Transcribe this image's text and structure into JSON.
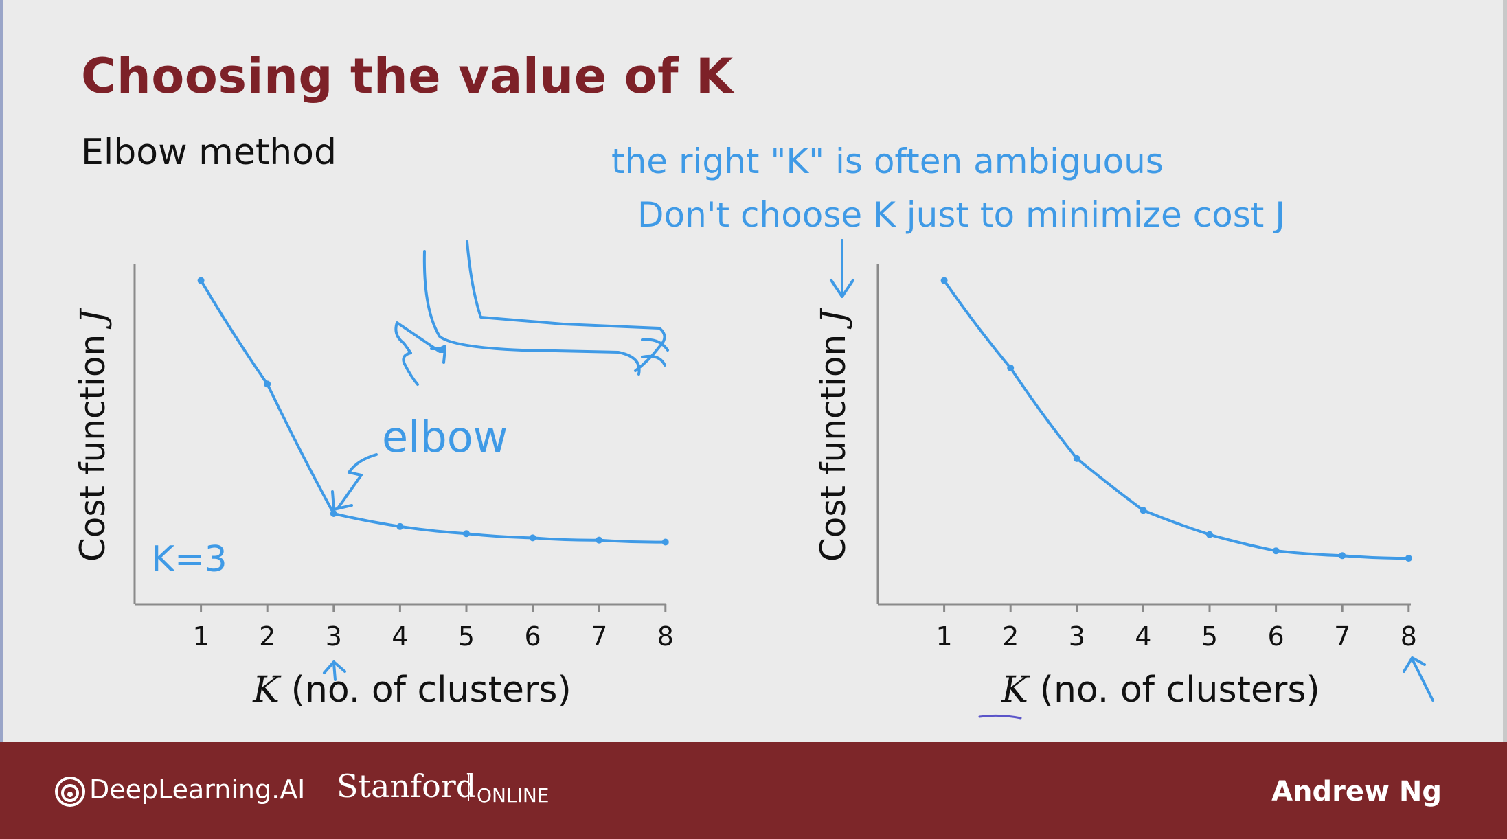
{
  "slide": {
    "title": "Choosing the value of K",
    "subtitle": "Elbow method"
  },
  "annotations": {
    "ambiguous": "the right \"K\" is often ambiguous",
    "dont_minimize": "Don't choose K just to minimize cost J",
    "elbow": "elbow",
    "k_equals": "K=3"
  },
  "colors": {
    "title": "#7d2128",
    "curve": "#3f9ae6",
    "footer": "#7d2629",
    "underline": "#5b55c9"
  },
  "chart_data": [
    {
      "type": "line",
      "x": [
        1,
        2,
        3,
        4,
        5,
        6,
        7,
        8
      ],
      "y": [
        100,
        68,
        28,
        24,
        21.8,
        20.5,
        19.8,
        19.2
      ],
      "ylim": [
        0,
        105
      ],
      "xlim": [
        0,
        8
      ],
      "xticks": [
        "1",
        "2",
        "3",
        "4",
        "5",
        "6",
        "7",
        "8"
      ],
      "xlabel_var": "K",
      "xlabel_text": "(no. of clusters)",
      "ylabel": "Cost function J",
      "grid": false
    },
    {
      "type": "line",
      "x": [
        1,
        2,
        3,
        4,
        5,
        6,
        7,
        8
      ],
      "y": [
        100,
        73,
        45,
        29,
        21.5,
        16.5,
        15,
        14.2
      ],
      "ylim": [
        0,
        105
      ],
      "xlim": [
        0,
        8
      ],
      "xticks": [
        "1",
        "2",
        "3",
        "4",
        "5",
        "6",
        "7",
        "8"
      ],
      "xlabel_var": "K",
      "xlabel_text": "(no. of clusters)",
      "ylabel": "Cost function J",
      "grid": false
    }
  ],
  "footer": {
    "brand_deeplearning": "DeepLearning.AI",
    "brand_stanford": "Stanford",
    "brand_online": "ONLINE",
    "author": "Andrew Ng"
  }
}
